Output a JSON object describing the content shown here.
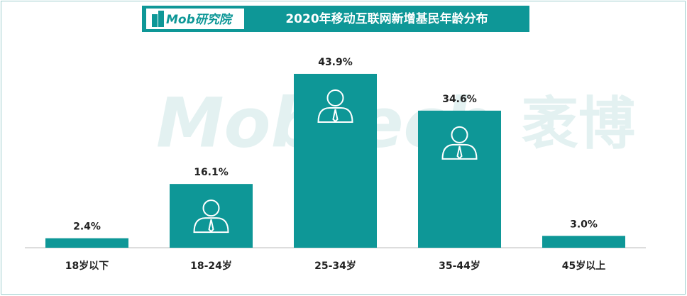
{
  "chart_data": {
    "type": "bar",
    "title": "2020年移动互联网新增基民年龄分布",
    "logo": "Mob研究院",
    "watermark": [
      "MobTech",
      "袤博"
    ],
    "categories": [
      "18岁以下",
      "18-24岁",
      "25-34岁",
      "35-44岁",
      "45岁以上"
    ],
    "values": [
      2.4,
      16.1,
      43.9,
      34.6,
      3.0
    ],
    "value_labels": [
      "2.4%",
      "16.1%",
      "43.9%",
      "34.6%",
      "3.0%"
    ],
    "color": "#0e9797"
  }
}
